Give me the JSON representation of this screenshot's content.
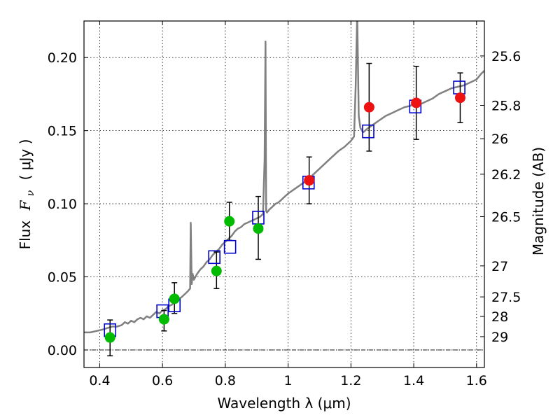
{
  "chart_data": {
    "type": "scatter",
    "xlabel": "Wavelength  λ (μm)",
    "ylabel_text": "Flux",
    "ylabel_symbol": "F",
    "ylabel_sub": "ν",
    "ylabel_unit": "( μJy )",
    "y2label": "Magnitude (AB)",
    "xlim": [
      0.35,
      1.625
    ],
    "ylim": [
      -0.012,
      0.225
    ],
    "grid": true,
    "xticks": [
      0.4,
      0.6,
      0.8,
      1.0,
      1.2,
      1.4,
      1.6
    ],
    "xtick_labels": [
      "0.4",
      "0.6",
      "0.8",
      "1",
      "1.2",
      "1.4",
      "1.6"
    ],
    "yticks": [
      0.0,
      0.05,
      0.1,
      0.15,
      0.2
    ],
    "ytick_labels": [
      "0.00",
      "0.05",
      "0.10",
      "0.15",
      "0.20"
    ],
    "y2ticks": [
      {
        "label": "25.6",
        "flux": 0.2011
      },
      {
        "label": "25.8",
        "flux": 0.1673
      },
      {
        "label": "26",
        "flux": 0.1445
      },
      {
        "label": "26.2",
        "flux": 0.1202
      },
      {
        "label": "26.5",
        "flux": 0.0912
      },
      {
        "label": "27",
        "flux": 0.0575
      },
      {
        "label": "27.5",
        "flux": 0.0363
      },
      {
        "label": "28",
        "flux": 0.0229
      },
      {
        "label": "29",
        "flux": 0.0091
      }
    ],
    "y2_zero_line": 0.0,
    "colors": {
      "spectrum": "#808080",
      "model": "#0000cc",
      "green": "#00bb00",
      "red": "#ee1111",
      "errorbar": "#000000"
    },
    "series": [
      {
        "kind": "spectrum",
        "x": [
          0.35,
          0.37,
          0.39,
          0.41,
          0.425,
          0.44,
          0.455,
          0.47,
          0.48,
          0.49,
          0.5,
          0.51,
          0.52,
          0.53,
          0.54,
          0.55,
          0.56,
          0.57,
          0.58,
          0.59,
          0.6,
          0.61,
          0.62,
          0.63,
          0.64,
          0.65,
          0.66,
          0.67,
          0.68,
          0.688,
          0.69,
          0.693,
          0.696,
          0.7,
          0.71,
          0.72,
          0.73,
          0.74,
          0.75,
          0.76,
          0.77,
          0.78,
          0.79,
          0.8,
          0.81,
          0.82,
          0.83,
          0.84,
          0.85,
          0.86,
          0.87,
          0.88,
          0.89,
          0.9,
          0.91,
          0.92,
          0.925,
          0.928,
          0.93,
          0.933,
          0.94,
          0.95,
          0.96,
          0.97,
          0.98,
          0.99,
          1.0,
          1.02,
          1.04,
          1.06,
          1.08,
          1.1,
          1.12,
          1.14,
          1.16,
          1.18,
          1.19,
          1.2,
          1.21,
          1.215,
          1.22,
          1.225,
          1.23,
          1.235,
          1.24,
          1.25,
          1.27,
          1.29,
          1.31,
          1.33,
          1.35,
          1.37,
          1.39,
          1.4,
          1.41,
          1.42,
          1.44,
          1.46,
          1.48,
          1.5,
          1.52,
          1.54,
          1.56,
          1.58,
          1.6,
          1.615,
          1.625
        ],
        "y": [
          0.012,
          0.012,
          0.013,
          0.014,
          0.015,
          0.016,
          0.016,
          0.017,
          0.019,
          0.018,
          0.02,
          0.019,
          0.021,
          0.022,
          0.021,
          0.023,
          0.022,
          0.024,
          0.026,
          0.025,
          0.027,
          0.028,
          0.03,
          0.031,
          0.033,
          0.035,
          0.036,
          0.038,
          0.04,
          0.042,
          0.087,
          0.045,
          0.052,
          0.048,
          0.052,
          0.055,
          0.057,
          0.06,
          0.062,
          0.065,
          0.067,
          0.069,
          0.072,
          0.074,
          0.076,
          0.078,
          0.081,
          0.083,
          0.084,
          0.086,
          0.087,
          0.088,
          0.089,
          0.09,
          0.091,
          0.093,
          0.13,
          0.211,
          0.095,
          0.094,
          0.096,
          0.098,
          0.1,
          0.101,
          0.103,
          0.105,
          0.107,
          0.11,
          0.113,
          0.116,
          0.12,
          0.124,
          0.128,
          0.132,
          0.136,
          0.139,
          0.141,
          0.143,
          0.146,
          0.18,
          0.23,
          0.16,
          0.152,
          0.15,
          0.149,
          0.151,
          0.154,
          0.157,
          0.16,
          0.162,
          0.164,
          0.166,
          0.167,
          0.169,
          0.172,
          0.168,
          0.17,
          0.172,
          0.175,
          0.177,
          0.179,
          0.18,
          0.181,
          0.183,
          0.185,
          0.189,
          0.191
        ]
      },
      {
        "kind": "model",
        "marker": "open-square",
        "x": [
          0.433,
          0.6,
          0.638,
          0.765,
          0.815,
          0.905,
          1.065,
          1.255,
          1.405,
          1.545
        ],
        "y": [
          0.0135,
          0.0265,
          0.0305,
          0.0635,
          0.0705,
          0.0905,
          0.1145,
          0.1495,
          0.1665,
          0.1795
        ]
      },
      {
        "kind": "observed-green",
        "marker": "filled-circle",
        "x": [
          0.433,
          0.605,
          0.638,
          0.772,
          0.813,
          0.905
        ],
        "y": [
          0.0085,
          0.021,
          0.035,
          0.054,
          0.088,
          0.083
        ],
        "yerr_low": [
          0.0125,
          0.008,
          0.01,
          0.012,
          0.013,
          0.021
        ],
        "yerr_high": [
          0.012,
          0.006,
          0.011,
          0.013,
          0.013,
          0.022
        ]
      },
      {
        "kind": "observed-red",
        "marker": "filled-circle",
        "x": [
          1.067,
          1.258,
          1.408,
          1.548
        ],
        "y": [
          0.116,
          0.166,
          0.169,
          0.1725
        ],
        "yerr_low": [
          0.016,
          0.03,
          0.025,
          0.017
        ],
        "yerr_high": [
          0.016,
          0.03,
          0.025,
          0.017
        ]
      }
    ]
  }
}
